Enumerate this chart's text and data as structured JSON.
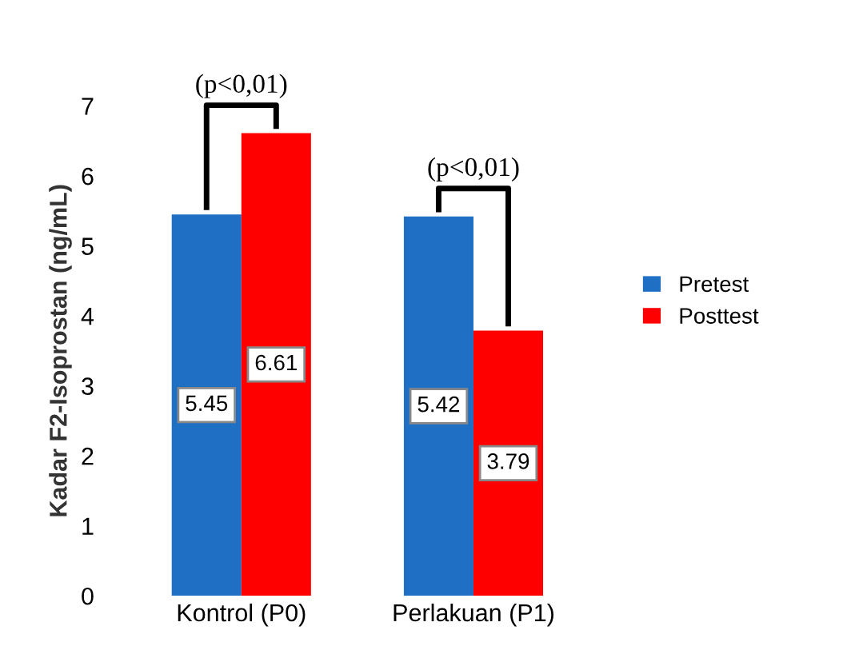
{
  "chart_data": {
    "type": "bar",
    "ylabel": "Kadar F2-Isoprostan (ng/mL)",
    "categories": [
      "Kontrol (P0)",
      "Perlakuan (P1)"
    ],
    "series": [
      {
        "name": "Pretest",
        "color": "#1f6fc5",
        "values": [
          5.45,
          5.42
        ]
      },
      {
        "name": "Posttest",
        "color": "#ff0000",
        "values": [
          6.61,
          3.79
        ]
      }
    ],
    "ylim": [
      0,
      7
    ],
    "yticks": [
      0,
      1,
      2,
      3,
      4,
      5,
      6,
      7
    ],
    "grid": false,
    "legend": "right",
    "data_labels": true,
    "annotations": [
      "(p<0,01)",
      "(p<0,01)"
    ]
  }
}
